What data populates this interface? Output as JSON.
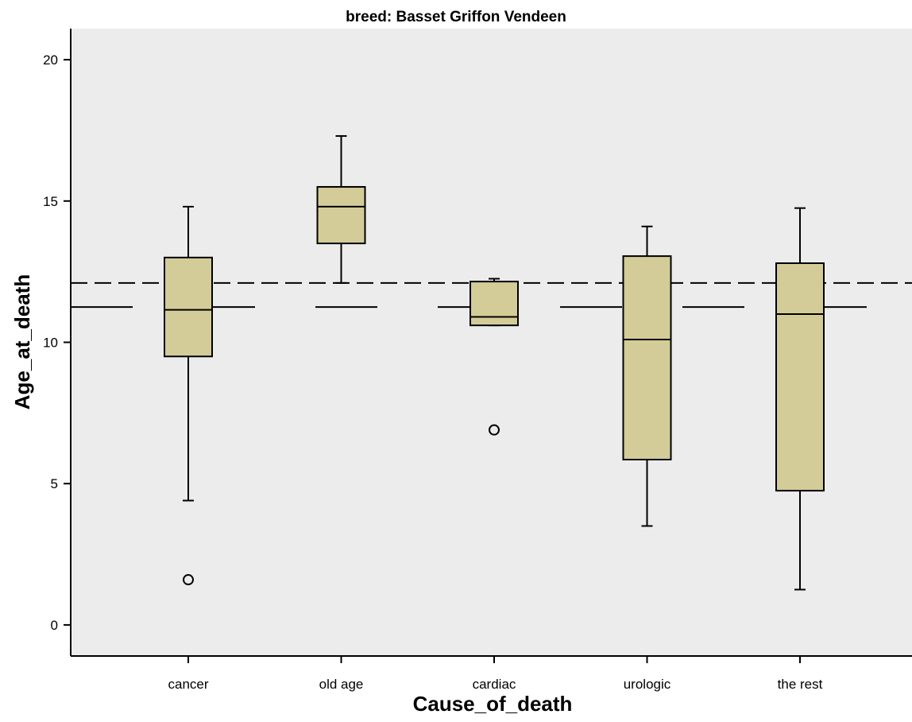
{
  "chart_data": {
    "type": "boxplot",
    "title": "breed: Basset Griffon Vendeen",
    "xlabel": "Cause_of_death",
    "ylabel": "Age_at_death",
    "ylim": [
      -1.1,
      21.1
    ],
    "yticks": [
      0,
      5,
      10,
      15,
      20
    ],
    "grid": false,
    "background_color": "#ececec",
    "box_color": "#d3cc98",
    "categories": [
      "cancer",
      "old age",
      "cardiac",
      "urologic",
      "the rest"
    ],
    "boxes": [
      {
        "category": "cancer",
        "whisker_low": 4.4,
        "q1": 9.5,
        "median": 11.15,
        "q3": 13.0,
        "whisker_high": 14.8,
        "outliers": [
          1.6
        ]
      },
      {
        "category": "old age",
        "whisker_low": 12.1,
        "q1": 13.5,
        "median": 14.8,
        "q3": 15.5,
        "whisker_high": 17.3,
        "outliers": []
      },
      {
        "category": "cardiac",
        "whisker_low": 10.6,
        "q1": 10.6,
        "median": 10.9,
        "q3": 12.15,
        "whisker_high": 12.25,
        "outliers": [
          6.9
        ]
      },
      {
        "category": "urologic",
        "whisker_low": 3.5,
        "q1": 5.85,
        "median": 10.1,
        "q3": 13.05,
        "whisker_high": 14.1,
        "outliers": []
      },
      {
        "category": "the rest",
        "whisker_low": 1.25,
        "q1": 4.75,
        "median": 11.0,
        "q3": 12.8,
        "whisker_high": 14.75,
        "outliers": []
      }
    ],
    "reference_lines": [
      {
        "y": 12.1,
        "style": "short-dash"
      },
      {
        "y": 11.25,
        "style": "long-dash"
      }
    ]
  }
}
